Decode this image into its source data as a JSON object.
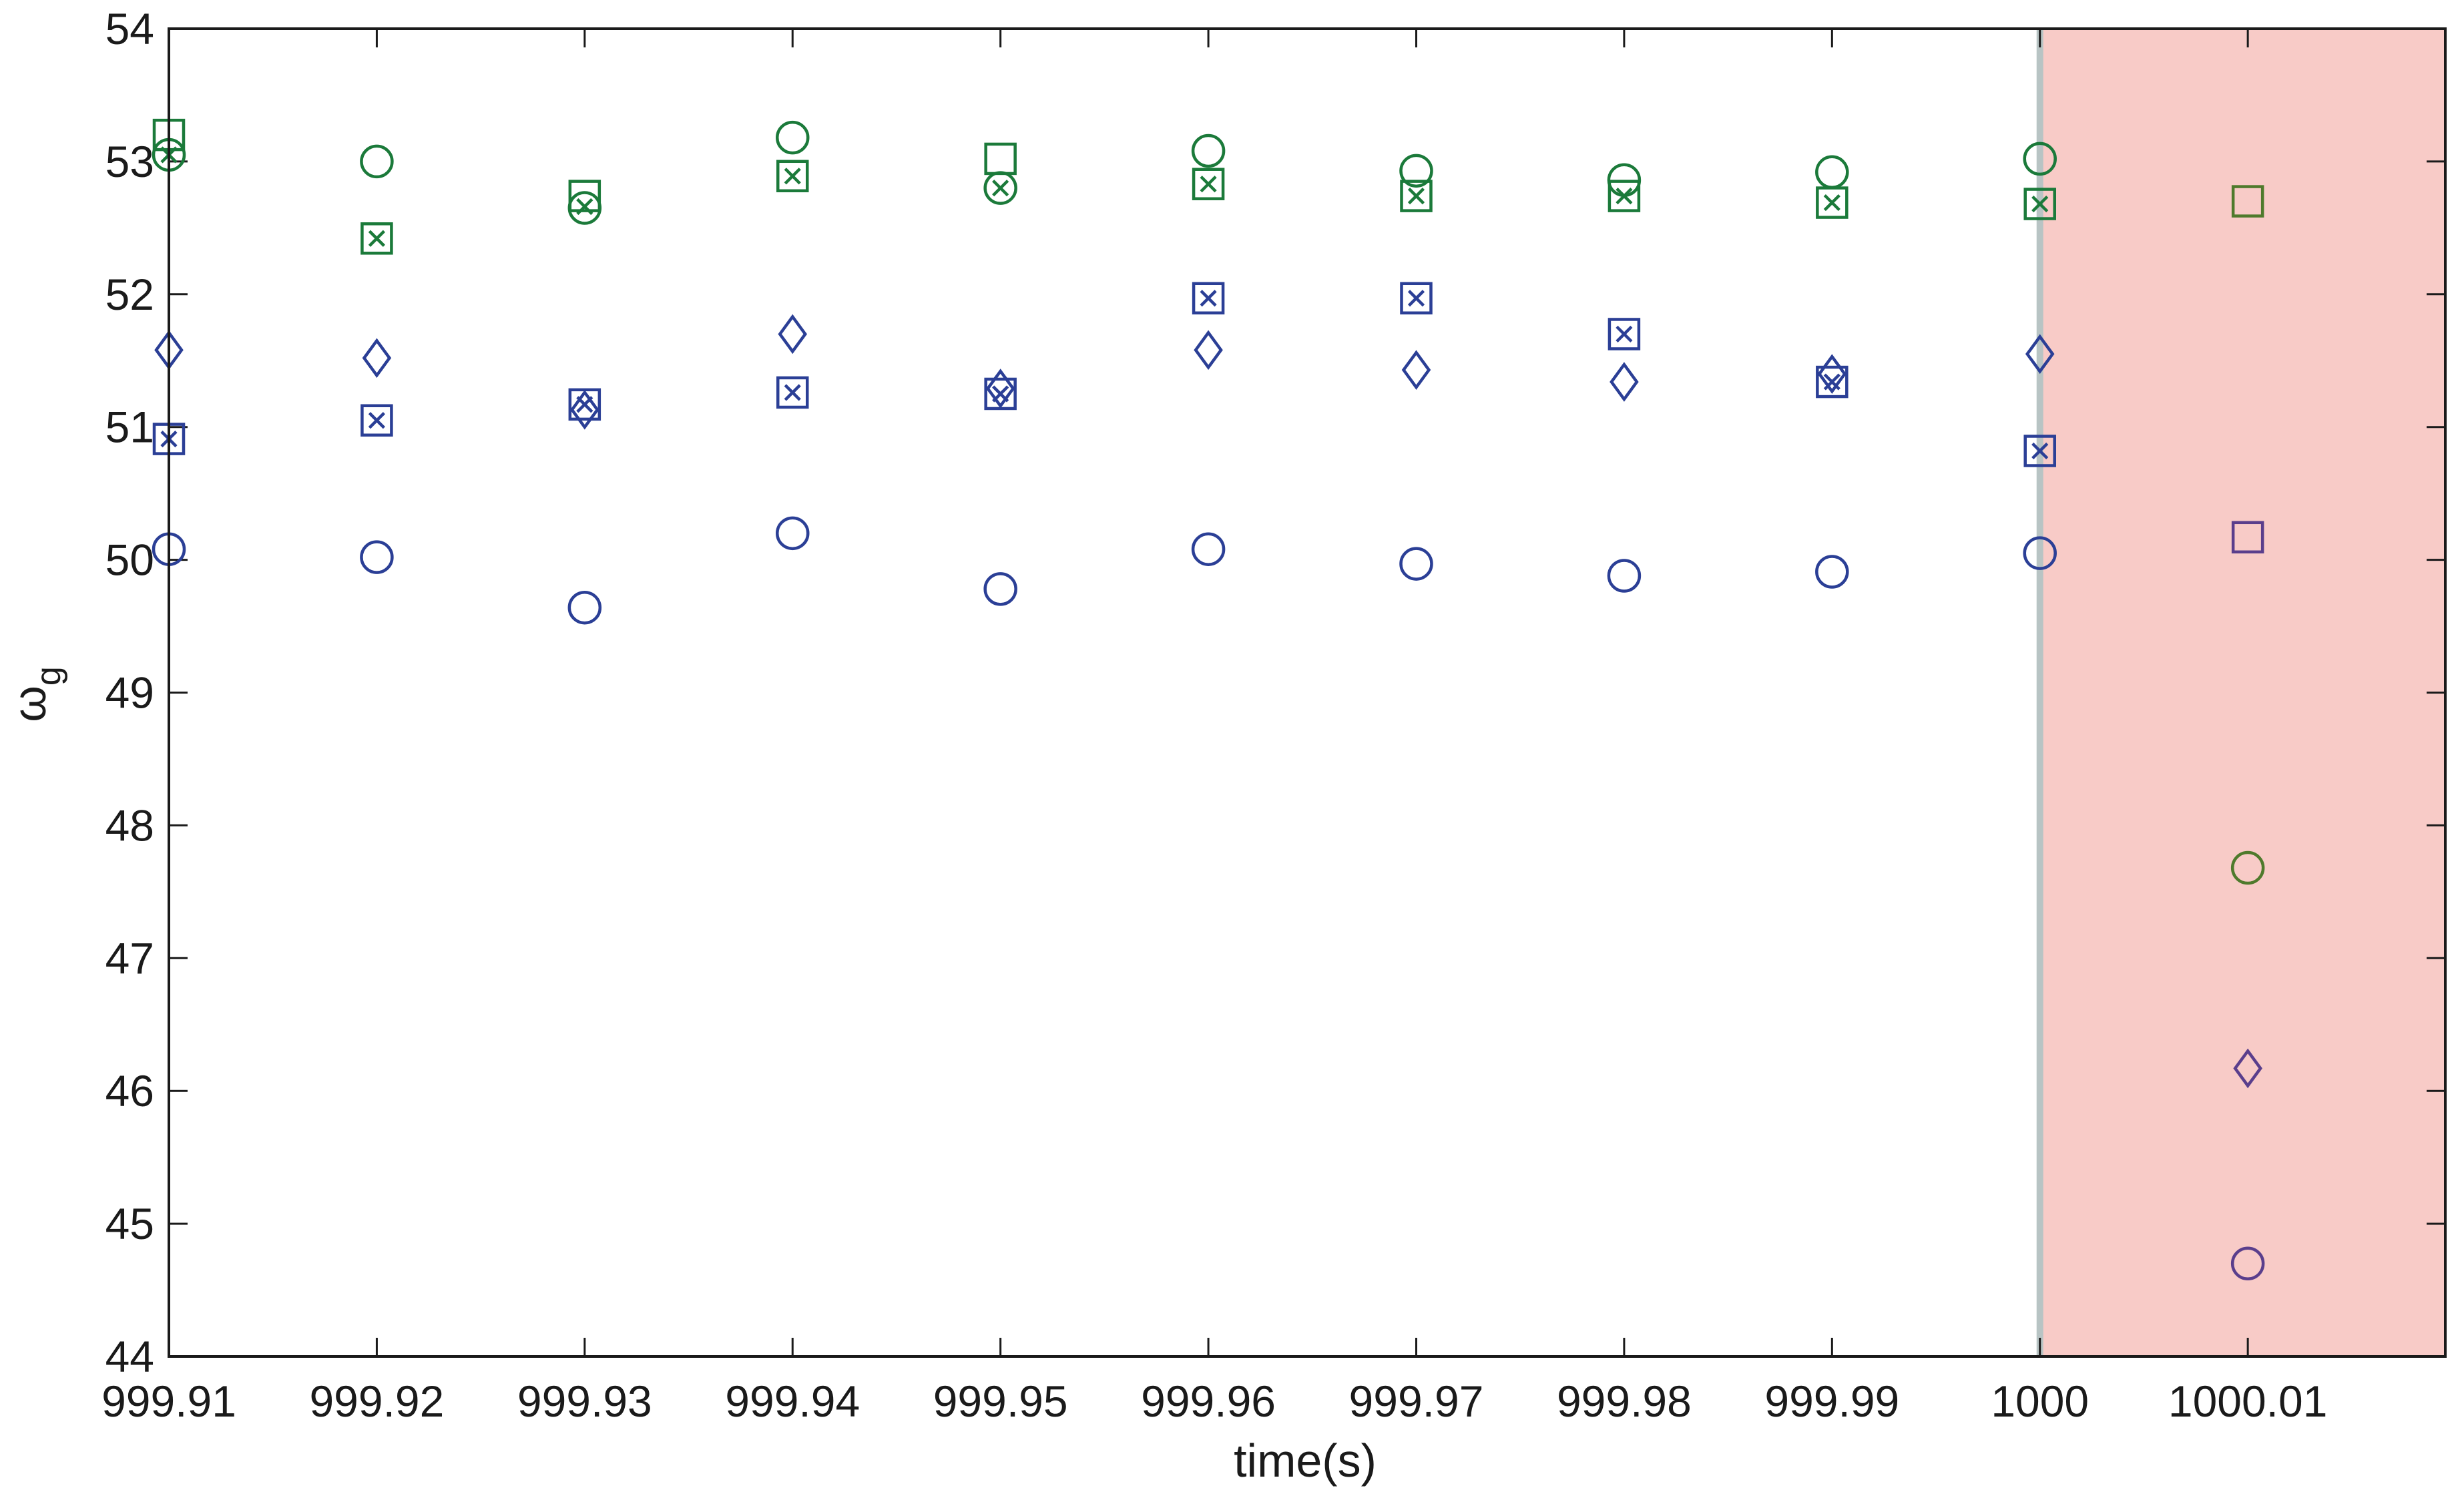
{
  "chart_data": {
    "type": "scatter",
    "xlabel": "time(s)",
    "ylabel_main": "ω",
    "ylabel_sub": "g",
    "xlim": [
      999.91,
      1000.0195
    ],
    "ylim": [
      44,
      54
    ],
    "x_ticks": [
      999.91,
      999.92,
      999.93,
      999.94,
      999.95,
      999.96,
      999.97,
      999.98,
      999.99,
      1000,
      1000.01
    ],
    "x_tick_labels": [
      "999.91",
      "999.92",
      "999.93",
      "999.94",
      "999.95",
      "999.96",
      "999.97",
      "999.98",
      "999.99",
      "1000",
      "1000.01"
    ],
    "y_ticks": [
      44,
      45,
      46,
      47,
      48,
      49,
      50,
      51,
      52,
      53,
      54
    ],
    "y_tick_labels": [
      "44",
      "45",
      "46",
      "47",
      "48",
      "49",
      "50",
      "51",
      "52",
      "53",
      "54"
    ],
    "grid": false,
    "highlight_region": {
      "x_start": 1000,
      "x_end": 1000.0195,
      "color": "#f8cbc7"
    },
    "divider": {
      "x": 1000,
      "color": "#b8c4c4"
    },
    "colors": {
      "green": "#1b7a3a",
      "blue": "#2b3f96",
      "purple": "#5a3e8c",
      "olive": "#4f7a2c"
    },
    "series": [
      {
        "marker": "circle",
        "color": "#1b7a3a",
        "x": [
          999.91,
          999.92,
          999.93,
          999.94,
          999.95,
          999.96,
          999.97,
          999.98,
          999.99,
          1000
        ],
        "y": [
          53.05,
          53.0,
          52.65,
          53.18,
          52.8,
          53.08,
          52.93,
          52.86,
          52.92,
          53.02
        ]
      },
      {
        "marker": "square",
        "color": "#1b7a3a",
        "x": [
          999.91,
          999.93,
          999.95
        ],
        "y": [
          53.2,
          52.74,
          53.02
        ]
      },
      {
        "marker": "boxed-x",
        "color": "#1b7a3a",
        "x": [
          999.92,
          999.94,
          999.96,
          999.97,
          999.98,
          999.99,
          1000
        ],
        "y": [
          52.42,
          52.89,
          52.83,
          52.74,
          52.74,
          52.69,
          52.68
        ]
      },
      {
        "marker": "x",
        "color": "#1b7a3a",
        "x": [
          999.91,
          999.93,
          999.95
        ],
        "y": [
          53.05,
          52.66,
          52.8
        ]
      },
      {
        "marker": "diamond",
        "color": "#2b3f96",
        "x": [
          999.91,
          999.92,
          999.93,
          999.94,
          999.95,
          999.96,
          999.97,
          999.98,
          999.99,
          1000
        ],
        "y": [
          51.58,
          51.52,
          51.13,
          51.7,
          51.29,
          51.58,
          51.43,
          51.34,
          51.4,
          51.55
        ]
      },
      {
        "marker": "boxed-x",
        "color": "#2b3f96",
        "x": [
          999.91,
          999.92,
          999.93,
          999.94,
          999.95,
          999.96,
          999.97,
          999.98,
          999.99,
          1000
        ],
        "y": [
          50.91,
          51.05,
          51.17,
          51.26,
          51.25,
          51.97,
          51.97,
          51.7,
          51.34,
          50.82
        ]
      },
      {
        "marker": "circle",
        "color": "#2b3f96",
        "x": [
          999.91,
          999.92,
          999.93,
          999.94,
          999.95,
          999.96,
          999.97,
          999.98,
          999.99,
          1000
        ],
        "y": [
          50.08,
          50.02,
          49.64,
          50.2,
          49.78,
          50.08,
          49.97,
          49.88,
          49.91,
          50.05
        ]
      },
      {
        "marker": "square",
        "color": "#4f7a2c",
        "x": [
          1000.01
        ],
        "y": [
          52.7
        ]
      },
      {
        "marker": "square",
        "color": "#5a3e8c",
        "x": [
          1000.01
        ],
        "y": [
          50.17
        ]
      },
      {
        "marker": "circle",
        "color": "#4f7a2c",
        "x": [
          1000.01
        ],
        "y": [
          47.68
        ]
      },
      {
        "marker": "diamond",
        "color": "#5a3e8c",
        "x": [
          1000.01
        ],
        "y": [
          46.17
        ]
      },
      {
        "marker": "circle",
        "color": "#5a3e8c",
        "x": [
          1000.01
        ],
        "y": [
          44.7
        ]
      }
    ]
  }
}
